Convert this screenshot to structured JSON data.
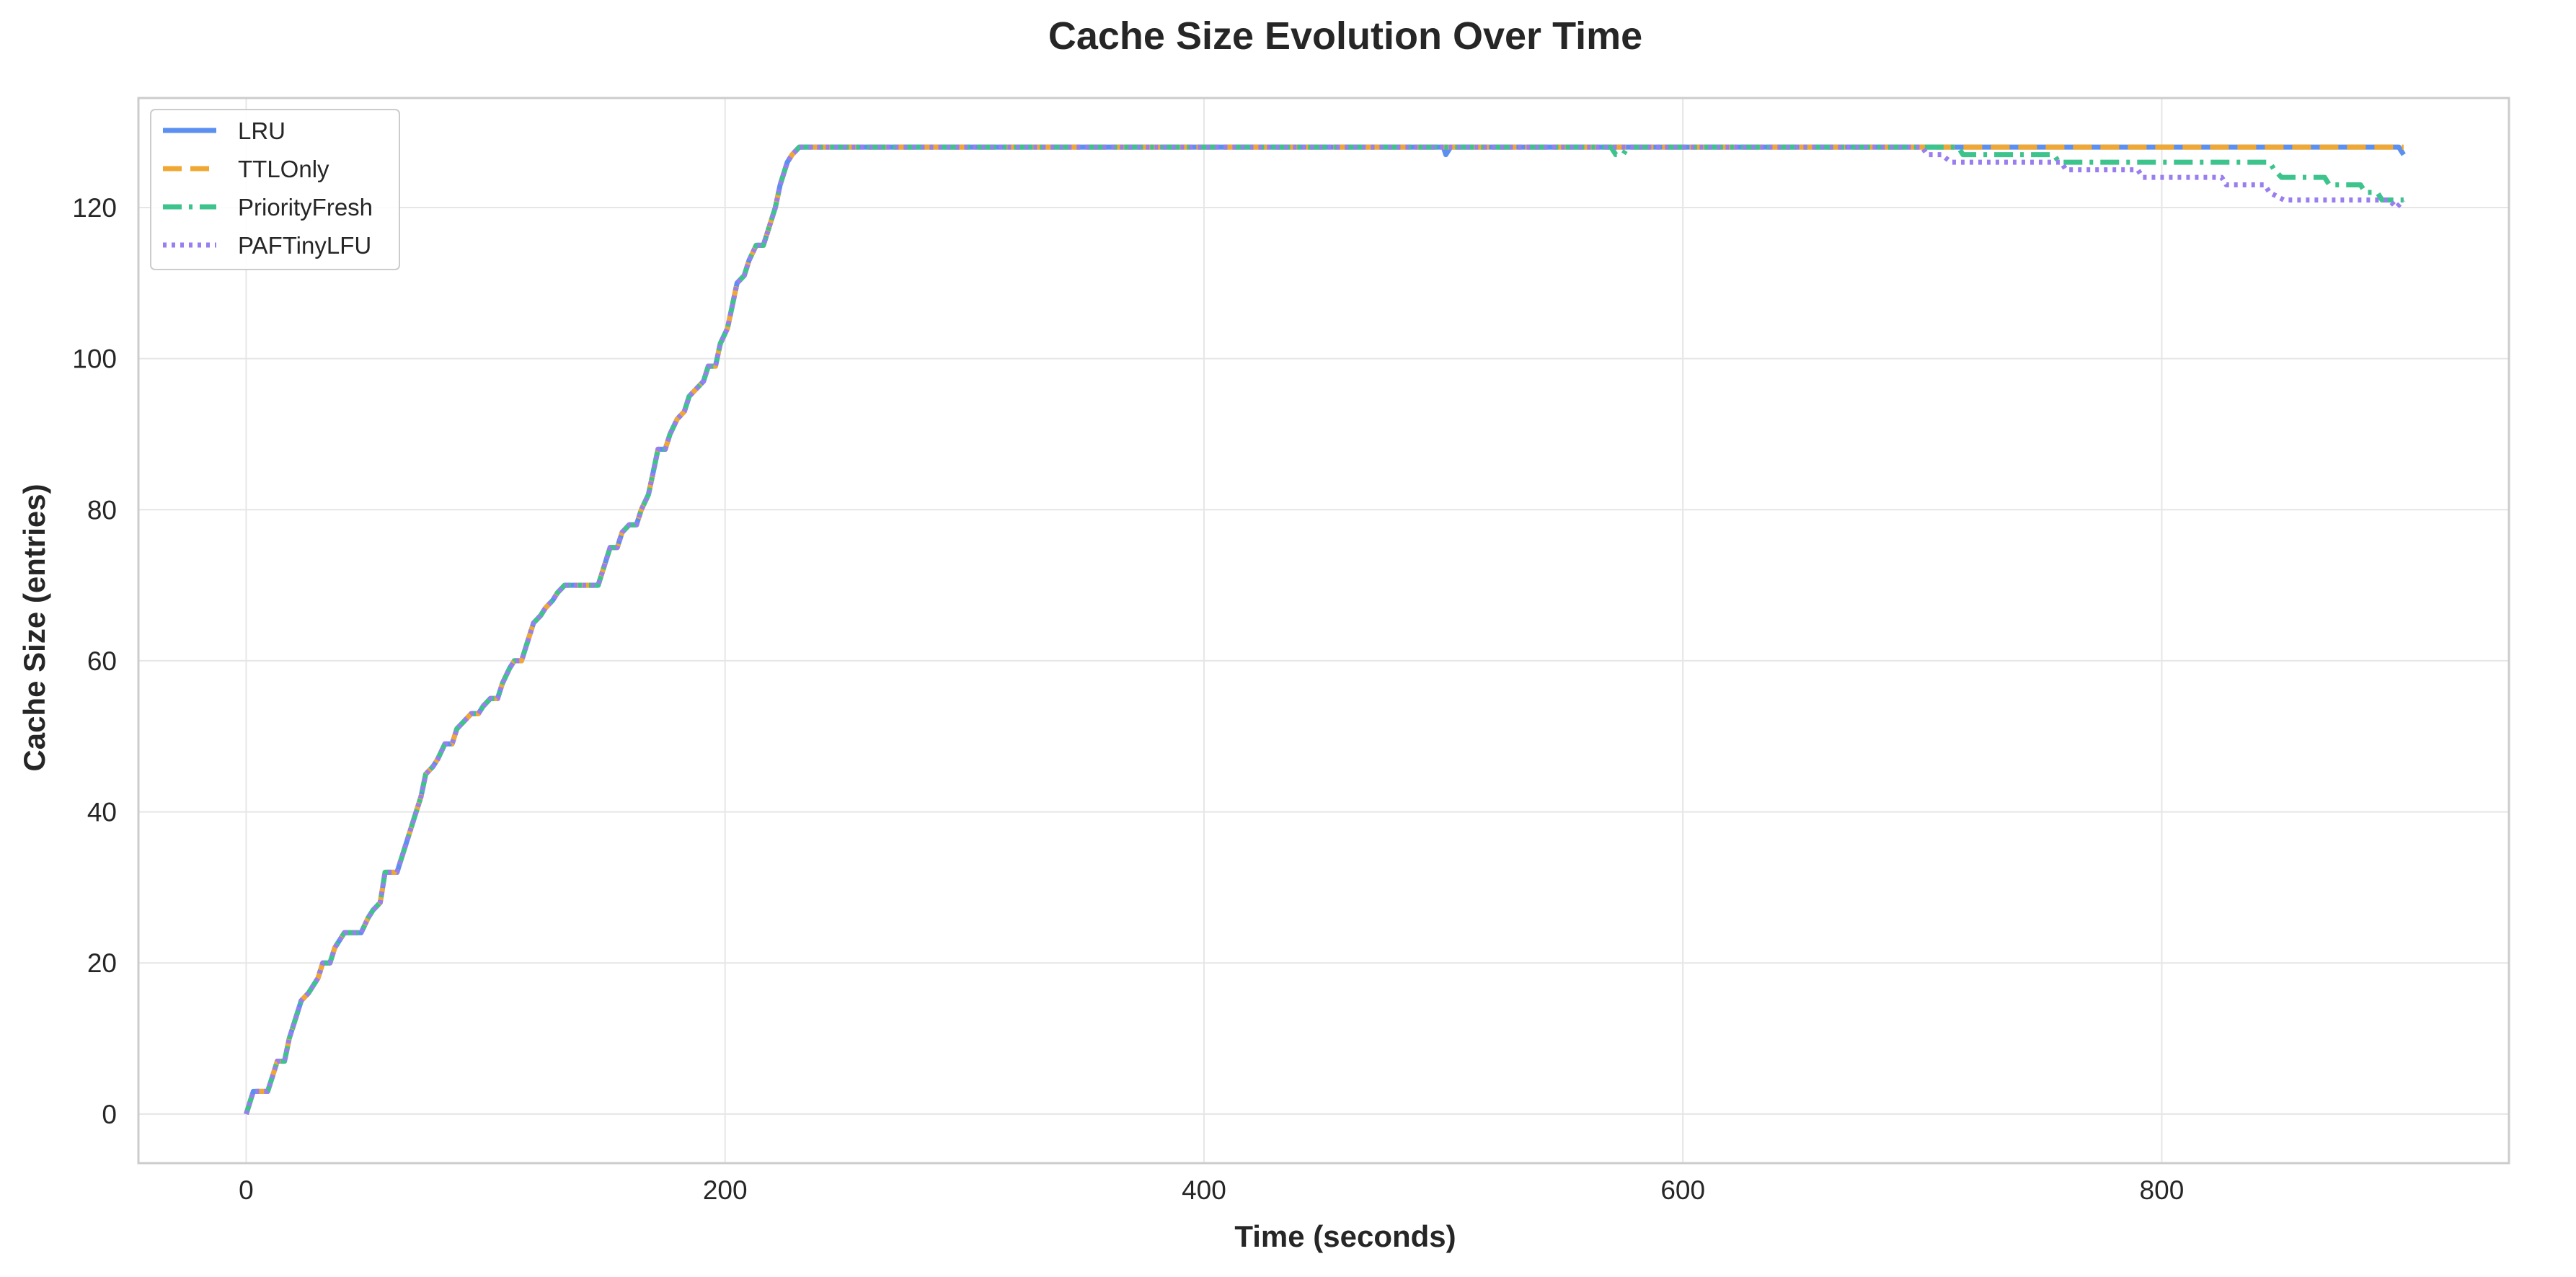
{
  "chart_data": {
    "type": "line",
    "title": "Cache Size Evolution Over Time",
    "xlabel": "Time (seconds)",
    "ylabel": "Cache Size (entries)",
    "xlim": [
      -45,
      945
    ],
    "ylim": [
      -6.5,
      134.5
    ],
    "xticks": [
      0,
      200,
      400,
      600,
      800
    ],
    "yticks": [
      0,
      20,
      40,
      60,
      80,
      100,
      120
    ],
    "grid": true,
    "legend_position": "top-left",
    "colors": {
      "LRU": "#5b8ff0",
      "TTLOnly": "#f0a832",
      "PriorityFresh": "#3cc48c",
      "PAFTinyLFU": "#9a7ef0"
    },
    "ramp": [
      [
        0,
        0
      ],
      [
        3,
        3
      ],
      [
        9,
        3
      ],
      [
        11,
        5
      ],
      [
        13,
        7
      ],
      [
        16,
        7
      ],
      [
        18,
        10
      ],
      [
        21,
        13
      ],
      [
        23,
        15
      ],
      [
        26,
        16
      ],
      [
        28,
        17
      ],
      [
        30,
        18
      ],
      [
        32,
        20
      ],
      [
        35,
        20
      ],
      [
        37,
        22
      ],
      [
        39,
        23
      ],
      [
        41,
        24
      ],
      [
        48,
        24
      ],
      [
        51,
        26
      ],
      [
        53,
        27
      ],
      [
        56,
        28
      ],
      [
        58,
        32
      ],
      [
        63,
        32
      ],
      [
        65,
        34
      ],
      [
        68,
        37
      ],
      [
        70,
        39
      ],
      [
        73,
        42
      ],
      [
        75,
        45
      ],
      [
        78,
        46
      ],
      [
        80,
        47
      ],
      [
        83,
        49
      ],
      [
        86,
        49
      ],
      [
        88,
        51
      ],
      [
        91,
        52
      ],
      [
        94,
        53
      ],
      [
        97,
        53
      ],
      [
        99,
        54
      ],
      [
        102,
        55
      ],
      [
        105,
        55
      ],
      [
        107,
        57
      ],
      [
        110,
        59
      ],
      [
        112,
        60
      ],
      [
        115,
        60
      ],
      [
        117,
        62
      ],
      [
        120,
        65
      ],
      [
        123,
        66
      ],
      [
        125,
        67
      ],
      [
        128,
        68
      ],
      [
        130,
        69
      ],
      [
        133,
        70
      ],
      [
        147,
        70
      ],
      [
        149,
        72
      ],
      [
        152,
        75
      ],
      [
        155,
        75
      ],
      [
        157,
        77
      ],
      [
        160,
        78
      ],
      [
        163,
        78
      ],
      [
        165,
        80
      ],
      [
        168,
        82
      ],
      [
        170,
        85
      ],
      [
        172,
        88
      ],
      [
        175,
        88
      ],
      [
        177,
        90
      ],
      [
        180,
        92
      ],
      [
        183,
        93
      ],
      [
        185,
        95
      ],
      [
        188,
        96
      ],
      [
        191,
        97
      ],
      [
        193,
        99
      ],
      [
        196,
        99
      ],
      [
        198,
        102
      ],
      [
        201,
        104
      ],
      [
        203,
        107
      ],
      [
        205,
        110
      ],
      [
        208,
        111
      ],
      [
        210,
        113
      ],
      [
        213,
        115
      ],
      [
        216,
        115
      ],
      [
        218,
        117
      ],
      [
        221,
        120
      ],
      [
        223,
        123
      ],
      [
        226,
        126
      ],
      [
        228,
        127
      ],
      [
        231,
        128
      ],
      [
        234,
        128
      ]
    ],
    "series": [
      {
        "name": "LRU",
        "style": "solid",
        "tail": [
          [
            500,
            128
          ],
          [
            501,
            127
          ],
          [
            503,
            128
          ],
          [
            897,
            128
          ],
          [
            899,
            128
          ],
          [
            901,
            127
          ]
        ]
      },
      {
        "name": "TTLOnly",
        "style": "dashed",
        "tail": [
          [
            901,
            128
          ]
        ]
      },
      {
        "name": "PriorityFresh",
        "style": "dashdot",
        "tail": [
          [
            570,
            128
          ],
          [
            572,
            127
          ],
          [
            575,
            127
          ],
          [
            577,
            128
          ],
          [
            715,
            128
          ],
          [
            717,
            127
          ],
          [
            755,
            127
          ],
          [
            757,
            126
          ],
          [
            845,
            126
          ],
          [
            847,
            125
          ],
          [
            850,
            124
          ],
          [
            868,
            124
          ],
          [
            870,
            123
          ],
          [
            883,
            123
          ],
          [
            885,
            122
          ],
          [
            890,
            122
          ],
          [
            892,
            121
          ],
          [
            901,
            121
          ]
        ]
      },
      {
        "name": "PAFTinyLFU",
        "style": "dotted",
        "tail": [
          [
            700,
            128
          ],
          [
            702,
            127
          ],
          [
            708,
            127
          ],
          [
            712,
            126
          ],
          [
            758,
            126
          ],
          [
            760,
            125
          ],
          [
            790,
            125
          ],
          [
            792,
            124
          ],
          [
            825,
            124
          ],
          [
            827,
            123
          ],
          [
            843,
            123
          ],
          [
            845,
            122
          ],
          [
            851,
            121
          ],
          [
            895,
            121
          ],
          [
            898,
            120
          ],
          [
            901,
            121
          ]
        ]
      }
    ]
  }
}
